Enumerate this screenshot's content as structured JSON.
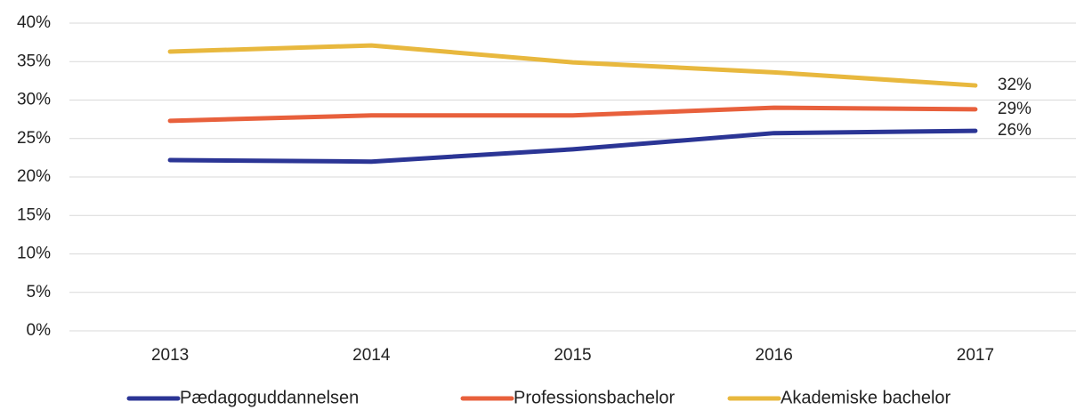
{
  "chart_data": {
    "type": "line",
    "categories": [
      "2013",
      "2014",
      "2015",
      "2016",
      "2017"
    ],
    "series": [
      {
        "name": "Pædagoguddannelsen",
        "color": "#2b3595",
        "values": [
          22.2,
          22.0,
          23.6,
          25.7,
          26.0
        ],
        "value_labels": [
          null,
          null,
          null,
          null,
          "26%"
        ]
      },
      {
        "name": "Professionsbachelor",
        "color": "#e8603c",
        "values": [
          27.3,
          28.0,
          28.0,
          29.0,
          28.8
        ],
        "value_labels": [
          null,
          null,
          null,
          null,
          "29%"
        ]
      },
      {
        "name": "Akademiske bachelor",
        "color": "#e8b83e",
        "values": [
          36.3,
          37.1,
          34.9,
          33.6,
          31.9
        ],
        "value_labels": [
          null,
          null,
          null,
          null,
          "32%"
        ]
      }
    ],
    "ylim": [
      0,
      40
    ],
    "yticks": [
      {
        "value": 0,
        "label": "0%"
      },
      {
        "value": 5,
        "label": "5%"
      },
      {
        "value": 10,
        "label": "10%"
      },
      {
        "value": 15,
        "label": "15%"
      },
      {
        "value": 20,
        "label": "20%"
      },
      {
        "value": 25,
        "label": "25%"
      },
      {
        "value": 30,
        "label": "30%"
      },
      {
        "value": 35,
        "label": "35%"
      },
      {
        "value": 40,
        "label": "40%"
      }
    ],
    "grid": true,
    "legend": "bottom"
  }
}
